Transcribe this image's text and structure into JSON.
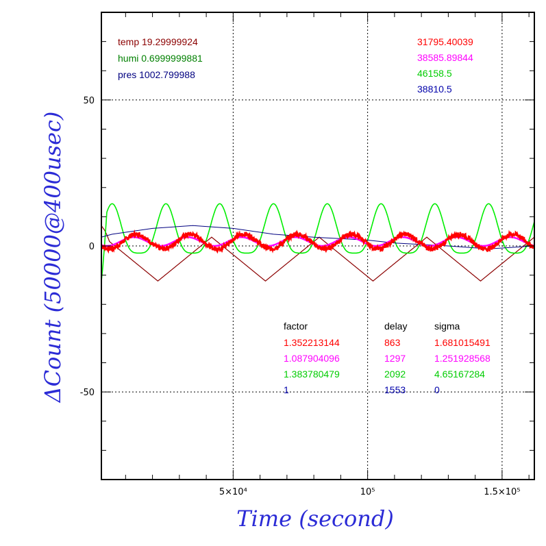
{
  "chart_data": {
    "type": "line",
    "xlabel": "Time (second)",
    "ylabel": "ΔCount (50000@400usec)",
    "xlim": [
      1000,
      162000
    ],
    "ylim": [
      -80,
      80
    ],
    "grid": true,
    "x_tick_labels": [
      {
        "value": 50000,
        "label": "5×10⁴"
      },
      {
        "value": 100000,
        "label": "10⁵"
      },
      {
        "value": 150000,
        "label": "1.5×10⁵"
      }
    ],
    "y_tick_labels": [
      {
        "value": 50,
        "label": "50"
      },
      {
        "value": 0,
        "label": "0"
      },
      {
        "value": -50,
        "label": "-50"
      }
    ],
    "environment": [
      {
        "label": "temp",
        "value": "19.29999924",
        "color": "#8b0000"
      },
      {
        "label": "humi",
        "value": "0.6999999881",
        "color": "#008000"
      },
      {
        "label": "pres",
        "value": "1002.799988",
        "color": "#000080"
      }
    ],
    "means": [
      {
        "value": "31795.40039",
        "color": "#ff0000"
      },
      {
        "value": "38585.89844",
        "color": "#ff00ff"
      },
      {
        "value": "46158.5",
        "color": "#00cc00"
      },
      {
        "value": "38810.5",
        "color": "#0000aa"
      }
    ],
    "table": {
      "headers": [
        "factor",
        "delay",
        "sigma"
      ],
      "rows": [
        {
          "factor": "1.352213144",
          "delay": "863",
          "sigma": "1.681015491",
          "color": "#ff0000"
        },
        {
          "factor": "1.087904096",
          "delay": "1297",
          "sigma": "1.251928568",
          "color": "#ff00ff"
        },
        {
          "factor": "1.383780479",
          "delay": "2092",
          "sigma": "4.65167284",
          "color": "#00cc00"
        },
        {
          "factor": "1",
          "delay": "1553",
          "sigma": "0",
          "color": "#0000aa"
        }
      ]
    },
    "series": [
      {
        "color": "#8b0000",
        "period": 40000,
        "min_y": -12,
        "max_y": 3,
        "first_min_x": 22000,
        "start_y": 7
      },
      {
        "color": "#00ee00",
        "period": 20000,
        "amplitude": 13,
        "first_peak_x": 5000,
        "start_y": -12
      },
      {
        "color": "#000080",
        "x": [
          1000,
          5000,
          20000,
          35000,
          50000,
          65000,
          80000,
          100000,
          110000,
          130000,
          145000,
          162000
        ],
        "y": [
          3,
          4,
          6,
          7,
          6,
          4,
          3,
          2,
          1,
          0,
          -1,
          0
        ]
      },
      {
        "color": "#ff00ff",
        "period": 20000,
        "amplitude": 1.5,
        "base_y": 1.5
      },
      {
        "color": "#ff0000",
        "period": 20000,
        "amplitude": 2.5,
        "base_y": 1.5,
        "noise": 0.8
      }
    ]
  }
}
